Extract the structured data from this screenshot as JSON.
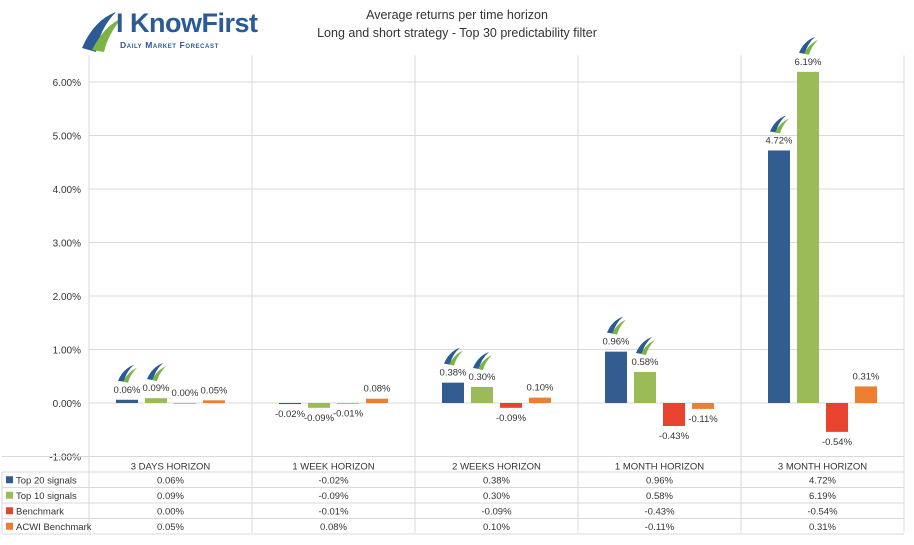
{
  "logo": {
    "name": "I KnowFirst",
    "tagline": "Daily Market Forecast"
  },
  "chart_data": {
    "type": "bar",
    "title": "Average returns per time horizon",
    "subtitle": "Long and short strategy - Top 30 predictability filter",
    "categories": [
      "3 DAYS HORIZON",
      "1 WEEK HORIZON",
      "2 WEEKS HORIZON",
      "1 MONTH HORIZON",
      "3 MONTH HORIZON"
    ],
    "series": [
      {
        "name": "Top 20 signals",
        "color": "#335d91",
        "values": [
          0.06,
          -0.02,
          0.38,
          0.96,
          4.72
        ],
        "labels": [
          "0.06%",
          "-0.02%",
          "0.38%",
          "0.96%",
          "4.72%"
        ]
      },
      {
        "name": "Top 10 signals",
        "color": "#9bbb59",
        "values": [
          0.09,
          -0.09,
          0.3,
          0.58,
          6.19
        ],
        "labels": [
          "0.09%",
          "-0.09%",
          "0.30%",
          "0.58%",
          "6.19%"
        ]
      },
      {
        "name": "Benchmark",
        "color": "#e8432e",
        "values": [
          0.0,
          -0.01,
          -0.09,
          -0.43,
          -0.54
        ],
        "labels": [
          "0.00%",
          "-0.01%",
          "-0.09%",
          "-0.43%",
          "-0.54%"
        ]
      },
      {
        "name": "ACWI Benchmark",
        "color": "#ed7d31",
        "values": [
          0.05,
          0.08,
          0.1,
          -0.11,
          0.31
        ],
        "labels": [
          "0.05%",
          "0.08%",
          "0.10%",
          "-0.11%",
          "0.31%"
        ]
      }
    ],
    "ylim": [
      -1,
      6.5
    ],
    "yticks": [
      -1,
      0,
      1,
      2,
      3,
      4,
      5,
      6
    ],
    "ytick_labels": [
      "-1.00%",
      "0.00%",
      "1.00%",
      "2.00%",
      "3.00%",
      "4.00%",
      "5.00%",
      "6.00%"
    ],
    "grid": true,
    "legend": "data-table-below",
    "icon_markers": "logo-icon above Top 20 signals and Top 10 signals bars"
  }
}
